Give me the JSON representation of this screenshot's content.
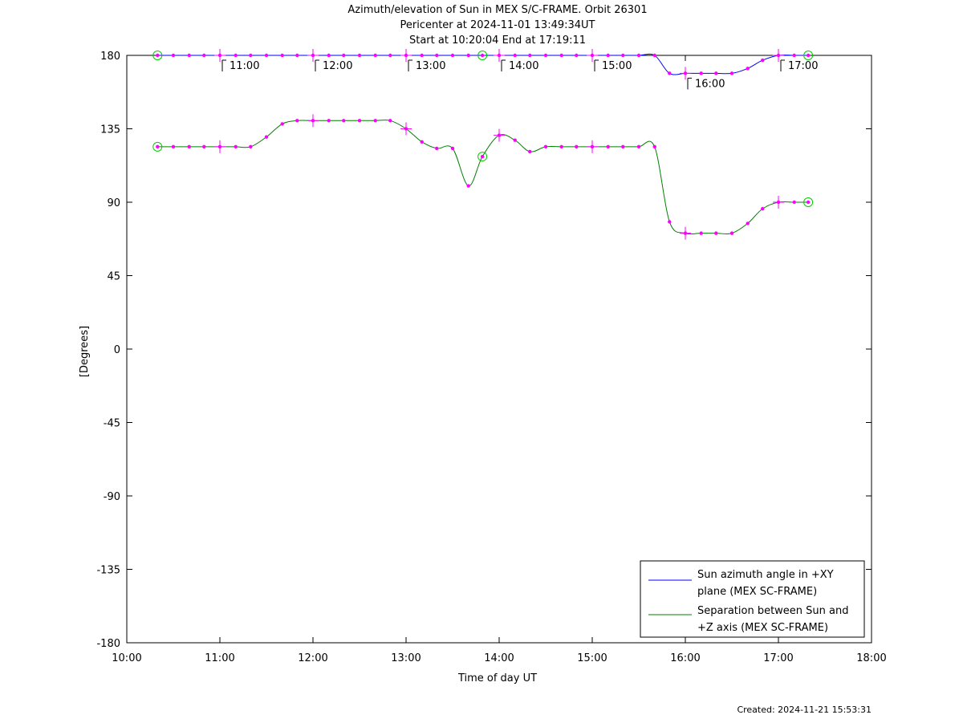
{
  "chart_data": {
    "type": "line",
    "title": "Azimuth/elevation of Sun in MEX S/C-FRAME.  Orbit 26301",
    "subtitle_lines": [
      "Pericenter at 2024-11-01 13:49:34UT",
      "Start at 10:20:04 End at 17:19:11"
    ],
    "xlabel": "Time of day UT",
    "ylabel": "[Degrees]",
    "xlim": [
      10.0,
      18.0
    ],
    "ylim": [
      -180,
      180
    ],
    "x_ticks": [
      10,
      11,
      12,
      13,
      14,
      15,
      16,
      17,
      18
    ],
    "x_tick_labels": [
      "10:00",
      "11:00",
      "12:00",
      "13:00",
      "14:00",
      "15:00",
      "16:00",
      "17:00",
      "18:00"
    ],
    "y_ticks": [
      180,
      135,
      90,
      45,
      0,
      -45,
      -90,
      -135,
      -180
    ],
    "y_tick_labels": [
      "180",
      "135",
      "90",
      "45",
      "0",
      "-45",
      "-90",
      "-135",
      "-180"
    ],
    "legend_position": "bottom-right",
    "series": [
      {
        "name": "Sun azimuth angle in +XY plane (MEX SC-FRAME)",
        "legend_lines": [
          "Sun azimuth angle in +XY",
          "plane (MEX SC-FRAME)"
        ],
        "color": "#0000ff",
        "x": [
          10.33,
          10.5,
          10.67,
          10.83,
          11.0,
          11.17,
          11.33,
          11.5,
          11.67,
          11.83,
          12.0,
          12.17,
          12.33,
          12.5,
          12.67,
          12.83,
          13.0,
          13.17,
          13.33,
          13.5,
          13.67,
          13.82,
          14.0,
          14.17,
          14.33,
          14.5,
          14.67,
          14.83,
          15.0,
          15.17,
          15.33,
          15.5,
          15.67,
          15.83,
          16.0,
          16.17,
          16.33,
          16.5,
          16.67,
          16.83,
          17.0,
          17.17,
          17.32
        ],
        "y": [
          180,
          180,
          180,
          180,
          180,
          180,
          180,
          180,
          180,
          180,
          180,
          180,
          180,
          180,
          180,
          180,
          180,
          180,
          180,
          180,
          180,
          180,
          180,
          180,
          180,
          180,
          180,
          180,
          180,
          180,
          180,
          180,
          180,
          169,
          169,
          169,
          169,
          169,
          172,
          177,
          180,
          180,
          180
        ]
      },
      {
        "name": "Separation between Sun and +Z axis (MEX SC-FRAME)",
        "legend_lines": [
          "Separation between Sun and",
          "+Z axis (MEX SC-FRAME)"
        ],
        "color": "#008000",
        "x": [
          10.33,
          10.5,
          10.67,
          10.83,
          11.0,
          11.17,
          11.33,
          11.5,
          11.67,
          11.83,
          12.0,
          12.17,
          12.33,
          12.5,
          12.67,
          12.83,
          13.0,
          13.17,
          13.33,
          13.5,
          13.67,
          13.82,
          14.0,
          14.17,
          14.33,
          14.5,
          14.67,
          14.83,
          15.0,
          15.17,
          15.33,
          15.5,
          15.67,
          15.83,
          16.0,
          16.17,
          16.33,
          16.5,
          16.67,
          16.83,
          17.0,
          17.17,
          17.32
        ],
        "y": [
          124,
          124,
          124,
          124,
          124,
          124,
          124,
          130,
          138,
          140,
          140,
          140,
          140,
          140,
          140,
          140,
          135,
          127,
          123,
          123,
          100,
          118,
          131,
          128,
          121,
          124,
          124,
          124,
          124,
          124,
          124,
          124,
          124,
          78,
          71,
          71,
          71,
          71,
          77,
          86,
          90,
          90,
          90
        ]
      }
    ],
    "hour_ticks_upper": [
      {
        "x": 11.0,
        "y": 180,
        "label": "11:00"
      },
      {
        "x": 12.0,
        "y": 180,
        "label": "12:00"
      },
      {
        "x": 13.0,
        "y": 180,
        "label": "13:00"
      },
      {
        "x": 14.0,
        "y": 180,
        "label": "14:00"
      },
      {
        "x": 15.0,
        "y": 180,
        "label": "15:00"
      },
      {
        "x": 16.0,
        "y": 169,
        "label": "16:00"
      },
      {
        "x": 17.0,
        "y": 180,
        "label": "17:00"
      }
    ],
    "hour_ticks_lower": [
      {
        "x": 11.0,
        "y": 124
      },
      {
        "x": 12.0,
        "y": 140
      },
      {
        "x": 13.0,
        "y": 135
      },
      {
        "x": 14.0,
        "y": 131
      },
      {
        "x": 15.0,
        "y": 124
      },
      {
        "x": 16.0,
        "y": 71
      },
      {
        "x": 17.0,
        "y": 90
      }
    ],
    "circle_markers": [
      {
        "x": 10.33,
        "y": 180
      },
      {
        "x": 13.82,
        "y": 180
      },
      {
        "x": 17.32,
        "y": 180
      },
      {
        "x": 10.33,
        "y": 124
      },
      {
        "x": 13.82,
        "y": 118
      },
      {
        "x": 17.32,
        "y": 90
      }
    ],
    "colors": {
      "marker": "#ff00ff",
      "circle": "#00cc00",
      "axis": "#000000"
    }
  },
  "footer": {
    "created": "Created: 2024-11-21 15:53:31"
  }
}
